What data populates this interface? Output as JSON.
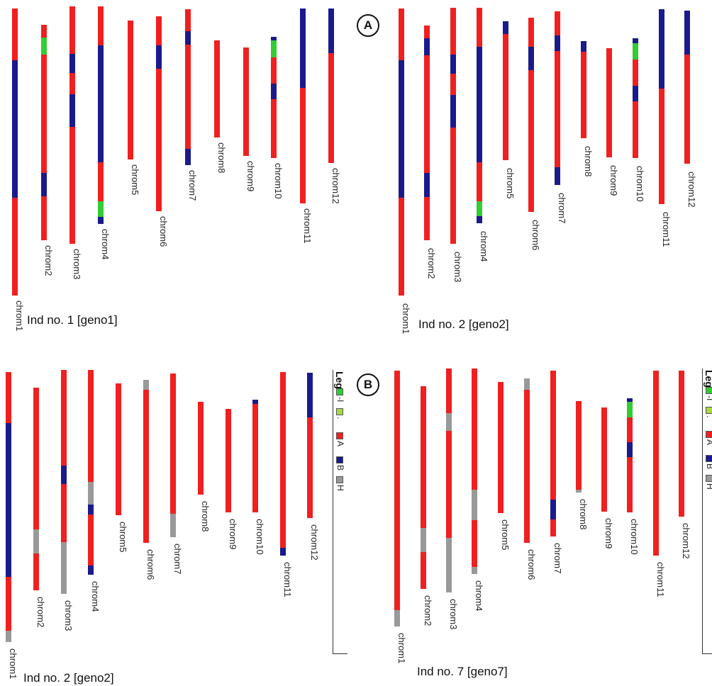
{
  "colors": {
    "A": "#f02020",
    "B": "#1a1a8c",
    "H": "#999999",
    "G": "#33cc33",
    "Y": "#a8d848"
  },
  "badges": {
    "A": "A",
    "B": "B"
  },
  "legend": {
    "title": "Lege",
    "items": [
      {
        "label": "-I",
        "color": "G"
      },
      {
        "label": ".",
        "color": "Y"
      },
      {
        "label": "A",
        "color": "A"
      },
      {
        "label": "B",
        "color": "B"
      },
      {
        "label": "H",
        "color": "H"
      }
    ]
  },
  "panels": [
    {
      "individual": "Ind no. 1 [geno1]",
      "chromosomes": [
        {
          "label": "chrom1",
          "segments": [
            [
              "A",
              0.18
            ],
            [
              "B",
              0.48
            ],
            [
              "A",
              0.34
            ]
          ]
        },
        {
          "label": "chrom2",
          "segments": [
            [
              "A",
              0.06
            ],
            [
              "G",
              0.08
            ],
            [
              "A",
              0.55
            ],
            [
              "B",
              0.11
            ],
            [
              "A",
              0.2
            ]
          ]
        },
        {
          "label": "chrom3",
          "segments": [
            [
              "A",
              0.2
            ],
            [
              "B",
              0.08
            ],
            [
              "A",
              0.09
            ],
            [
              "B",
              0.14
            ],
            [
              "A",
              0.49
            ]
          ]
        },
        {
          "label": "chrom4",
          "segments": [
            [
              "A",
              0.18
            ],
            [
              "B",
              0.54
            ],
            [
              "A",
              0.18
            ],
            [
              "G",
              0.07
            ],
            [
              "B",
              0.03
            ]
          ]
        },
        {
          "label": "chrom5",
          "segments": [
            [
              "A",
              1.0
            ]
          ]
        },
        {
          "label": "chrom6",
          "segments": [
            [
              "A",
              0.15
            ],
            [
              "B",
              0.12
            ],
            [
              "A",
              0.73
            ]
          ]
        },
        {
          "label": "chrom7",
          "segments": [
            [
              "A",
              0.14
            ],
            [
              "B",
              0.09
            ],
            [
              "A",
              0.67
            ],
            [
              "B",
              0.1
            ]
          ]
        },
        {
          "label": "chrom8",
          "segments": [
            [
              "A",
              1.0
            ]
          ]
        },
        {
          "label": "chrom9",
          "segments": [
            [
              "A",
              1.0
            ]
          ]
        },
        {
          "label": "chrom10",
          "segments": [
            [
              "B",
              0.03
            ],
            [
              "G",
              0.14
            ],
            [
              "A",
              0.22
            ],
            [
              "B",
              0.13
            ],
            [
              "A",
              0.48
            ]
          ]
        },
        {
          "label": "chrom11",
          "segments": [
            [
              "B",
              0.41
            ],
            [
              "A",
              0.59
            ]
          ]
        },
        {
          "label": "chrom12",
          "segments": [
            [
              "B",
              0.29
            ],
            [
              "A",
              0.71
            ]
          ]
        }
      ]
    },
    {
      "individual": "Ind no. 2 [geno2]",
      "chromosomes": [
        {
          "label": "chrom1",
          "segments": [
            [
              "A",
              0.18
            ],
            [
              "B",
              0.48
            ],
            [
              "A",
              0.34
            ]
          ]
        },
        {
          "label": "chrom2",
          "segments": [
            [
              "A",
              0.06
            ],
            [
              "B",
              0.08
            ],
            [
              "A",
              0.55
            ],
            [
              "B",
              0.11
            ],
            [
              "A",
              0.2
            ]
          ]
        },
        {
          "label": "chrom3",
          "segments": [
            [
              "A",
              0.2
            ],
            [
              "B",
              0.08
            ],
            [
              "A",
              0.09
            ],
            [
              "B",
              0.14
            ],
            [
              "A",
              0.49
            ]
          ]
        },
        {
          "label": "chrom4",
          "segments": [
            [
              "A",
              0.18
            ],
            [
              "B",
              0.54
            ],
            [
              "A",
              0.18
            ],
            [
              "G",
              0.07
            ],
            [
              "B",
              0.03
            ]
          ]
        },
        {
          "label": "chrom5",
          "segments": [
            [
              "B",
              0.09
            ],
            [
              "A",
              0.91
            ]
          ]
        },
        {
          "label": "chrom6",
          "segments": [
            [
              "A",
              0.15
            ],
            [
              "B",
              0.12
            ],
            [
              "A",
              0.73
            ]
          ]
        },
        {
          "label": "chrom7",
          "segments": [
            [
              "A",
              0.14
            ],
            [
              "B",
              0.09
            ],
            [
              "A",
              0.67
            ],
            [
              "B",
              0.1
            ]
          ]
        },
        {
          "label": "chrom8",
          "segments": [
            [
              "B",
              0.11
            ],
            [
              "A",
              0.89
            ]
          ]
        },
        {
          "label": "chrom9",
          "segments": [
            [
              "A",
              1.0
            ]
          ]
        },
        {
          "label": "chrom10",
          "segments": [
            [
              "B",
              0.04
            ],
            [
              "G",
              0.14
            ],
            [
              "A",
              0.22
            ],
            [
              "B",
              0.13
            ],
            [
              "A",
              0.47
            ]
          ]
        },
        {
          "label": "chrom11",
          "segments": [
            [
              "B",
              0.41
            ],
            [
              "A",
              0.59
            ]
          ]
        },
        {
          "label": "chrom12",
          "segments": [
            [
              "B",
              0.29
            ],
            [
              "A",
              0.71
            ]
          ]
        }
      ]
    },
    {
      "individual": "Ind no. 2 [geno2]",
      "chromosomes": [
        {
          "label": "chrom1",
          "segments": [
            [
              "A",
              0.19
            ],
            [
              "B",
              0.57
            ],
            [
              "A",
              0.2
            ],
            [
              "H",
              0.04
            ]
          ]
        },
        {
          "label": "chrom2",
          "segments": [
            [
              "A",
              0.7
            ],
            [
              "H",
              0.12
            ],
            [
              "A",
              0.18
            ]
          ]
        },
        {
          "label": "chrom3",
          "segments": [
            [
              "A",
              0.43
            ],
            [
              "B",
              0.08
            ],
            [
              "A",
              0.26
            ],
            [
              "H",
              0.23
            ]
          ]
        },
        {
          "label": "chrom4",
          "segments": [
            [
              "A",
              0.55
            ],
            [
              "H",
              0.11
            ],
            [
              "B",
              0.05
            ],
            [
              "A",
              0.25
            ],
            [
              "B",
              0.04
            ]
          ]
        },
        {
          "label": "chrom5",
          "segments": [
            [
              "A",
              1.0
            ]
          ]
        },
        {
          "label": "chrom6",
          "segments": [
            [
              "H",
              0.06
            ],
            [
              "A",
              0.94
            ]
          ]
        },
        {
          "label": "chrom7",
          "segments": [
            [
              "A",
              0.86
            ],
            [
              "H",
              0.14
            ]
          ]
        },
        {
          "label": "chrom8",
          "segments": [
            [
              "A",
              1.0
            ]
          ]
        },
        {
          "label": "chrom9",
          "segments": [
            [
              "A",
              1.0
            ]
          ]
        },
        {
          "label": "chrom10",
          "segments": [
            [
              "B",
              0.04
            ],
            [
              "A",
              0.96
            ]
          ]
        },
        {
          "label": "chrom11",
          "segments": [
            [
              "A",
              0.96
            ],
            [
              "B",
              0.04
            ]
          ]
        },
        {
          "label": "chrom12",
          "segments": [
            [
              "B",
              0.31
            ],
            [
              "A",
              0.69
            ]
          ]
        }
      ]
    },
    {
      "individual": "Ind no. 7 [geno7]",
      "chromosomes": [
        {
          "label": "chrom1",
          "segments": [
            [
              "A",
              0.94
            ],
            [
              "H",
              0.06
            ]
          ]
        },
        {
          "label": "chrom2",
          "segments": [
            [
              "A",
              0.7
            ],
            [
              "H",
              0.12
            ],
            [
              "A",
              0.18
            ]
          ]
        },
        {
          "label": "chrom3",
          "segments": [
            [
              "A",
              0.2
            ],
            [
              "H",
              0.08
            ],
            [
              "A",
              0.48
            ],
            [
              "H",
              0.24
            ]
          ]
        },
        {
          "label": "chrom4",
          "segments": [
            [
              "A",
              0.59
            ],
            [
              "H",
              0.15
            ],
            [
              "A",
              0.23
            ],
            [
              "H",
              0.03
            ]
          ]
        },
        {
          "label": "chrom5",
          "segments": [
            [
              "A",
              1.0
            ]
          ]
        },
        {
          "label": "chrom6",
          "segments": [
            [
              "H",
              0.07
            ],
            [
              "A",
              0.93
            ]
          ]
        },
        {
          "label": "chrom7",
          "segments": [
            [
              "A",
              0.78
            ],
            [
              "B",
              0.12
            ],
            [
              "A",
              0.1
            ]
          ]
        },
        {
          "label": "chrom8",
          "segments": [
            [
              "A",
              0.98
            ],
            [
              "H",
              0.02
            ]
          ]
        },
        {
          "label": "chrom9",
          "segments": [
            [
              "A",
              1.0
            ]
          ]
        },
        {
          "label": "chrom10",
          "segments": [
            [
              "B",
              0.03
            ],
            [
              "G",
              0.14
            ],
            [
              "A",
              0.22
            ],
            [
              "B",
              0.13
            ],
            [
              "A",
              0.48
            ]
          ]
        },
        {
          "label": "chrom11",
          "segments": [
            [
              "A",
              1.0
            ]
          ]
        },
        {
          "label": "chrom12",
          "segments": [
            [
              "A",
              1.0
            ]
          ]
        }
      ]
    }
  ]
}
